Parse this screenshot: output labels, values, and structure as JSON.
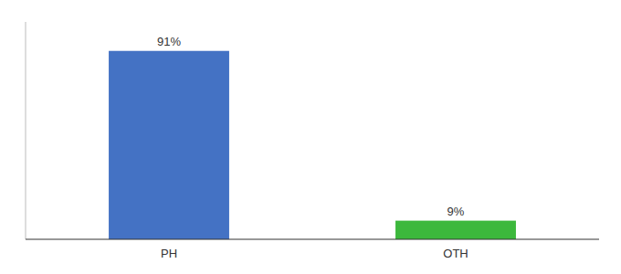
{
  "chart_data": {
    "type": "bar",
    "categories": [
      "PH",
      "OTH"
    ],
    "values": [
      91,
      9
    ],
    "value_labels": [
      "91%",
      "9%"
    ],
    "colors": [
      "#4472c4",
      "#3cb83c"
    ],
    "ylim": [
      0,
      105
    ],
    "data_labels": true,
    "tick_labels": "x"
  }
}
